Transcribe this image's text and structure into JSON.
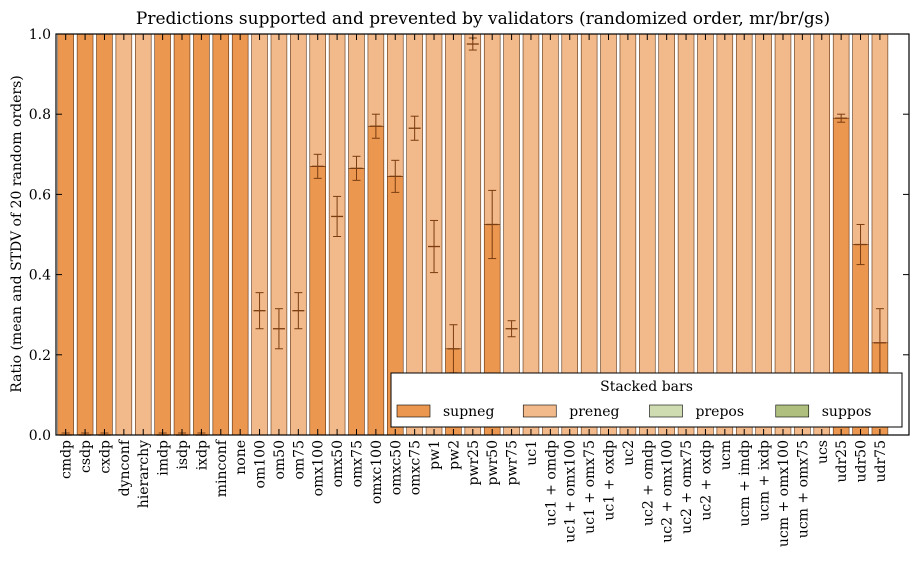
{
  "chart_data": {
    "type": "bar",
    "stacked": true,
    "title": "Predictions supported and prevented by validators (randomized order, mr/br/gs)",
    "xlabel": "",
    "ylabel": "Ratio (mean and STDV of 20 random orders)",
    "ylim": [
      0,
      1.0
    ],
    "yticks": [
      "0.0",
      "0.2",
      "0.4",
      "0.6",
      "0.8",
      "1.0"
    ],
    "grid": false,
    "legend": {
      "title": "Stacked bars",
      "placement": "lower-right",
      "entries": [
        "supneg",
        "preneg",
        "prepos",
        "suppos"
      ]
    },
    "colors": {
      "supneg": "#eb974f",
      "preneg": "#f2b98a",
      "prepos": "#cfdcb2",
      "suppos": "#aebf7e",
      "edge": "#5a3215",
      "errorbar": "#7a3c10"
    },
    "categories": [
      "cmdp",
      "csdp",
      "cxdp",
      "dynconf",
      "hierarchy",
      "imdp",
      "isdp",
      "ixdp",
      "minconf",
      "none",
      "om100",
      "om50",
      "om75",
      "omx100",
      "omx50",
      "omx75",
      "omxc100",
      "omxc50",
      "omxc75",
      "pw1",
      "pw2",
      "pwr25",
      "pwr50",
      "pwr75",
      "uc1",
      "uc1 + omdp",
      "uc1 + omx100",
      "uc1 + omx75",
      "uc1 + oxdp",
      "uc2",
      "uc2 + omdp",
      "uc2 + omx100",
      "uc2 + omx75",
      "uc2 + oxdp",
      "ucm",
      "ucm + imdp",
      "ucm + ixdp",
      "ucm + omx100",
      "ucm + omx75",
      "ucs",
      "udr25",
      "udr50",
      "udr75"
    ],
    "series": [
      {
        "name": "supneg",
        "values": [
          1.0,
          1.0,
          1.0,
          0,
          0,
          1.0,
          1.0,
          1.0,
          1.0,
          1.0,
          0,
          0,
          0,
          0.67,
          0,
          0.665,
          0.77,
          0.645,
          0,
          0,
          0.215,
          0,
          0.525,
          0,
          0,
          0,
          0,
          0,
          0,
          0,
          0,
          0,
          0,
          0,
          0,
          0,
          0,
          0,
          0,
          0,
          0.79,
          0.475,
          0.23
        ]
      },
      {
        "name": "preneg",
        "values": [
          0,
          0,
          0,
          1.0,
          1.0,
          0,
          0,
          0,
          0,
          0,
          1.0,
          1.0,
          1.0,
          0.33,
          1.0,
          0.335,
          0.23,
          0.355,
          1.0,
          1.0,
          0.785,
          1.0,
          0.475,
          1.0,
          1.0,
          1.0,
          1.0,
          1.0,
          1.0,
          1.0,
          1.0,
          1.0,
          1.0,
          1.0,
          1.0,
          1.0,
          1.0,
          1.0,
          1.0,
          1.0,
          0.21,
          0.525,
          0.77
        ]
      },
      {
        "name": "prepos",
        "values": [
          0,
          0,
          0,
          0,
          0,
          0,
          0,
          0,
          0,
          0,
          0,
          0,
          0,
          0,
          0,
          0,
          0,
          0,
          0,
          0,
          0,
          0,
          0,
          0,
          0,
          0,
          0,
          0,
          0,
          0,
          0,
          0,
          0,
          0,
          0,
          0,
          0,
          0,
          0,
          0,
          0,
          0,
          0
        ]
      },
      {
        "name": "suppos",
        "values": [
          0,
          0,
          0,
          0,
          0,
          0,
          0,
          0,
          0,
          0,
          0,
          0,
          0,
          0,
          0,
          0,
          0,
          0,
          0,
          0,
          0,
          0,
          0,
          0,
          0,
          0,
          0,
          0,
          0,
          0,
          0,
          0,
          0,
          0,
          0,
          0,
          0,
          0,
          0,
          0,
          0,
          0,
          0
        ]
      }
    ],
    "errorbars": {
      "mean": [
        0,
        0,
        0,
        null,
        null,
        0,
        0,
        0,
        null,
        null,
        0.31,
        0.265,
        0.31,
        0.67,
        0.545,
        0.665,
        0.77,
        0.645,
        0.765,
        0.47,
        0.215,
        0.975,
        0.525,
        0.265,
        null,
        null,
        null,
        null,
        null,
        null,
        null,
        null,
        null,
        null,
        null,
        null,
        null,
        null,
        null,
        null,
        0.79,
        0.475,
        0.23
      ],
      "stdv": [
        0.005,
        0.005,
        0.005,
        null,
        null,
        0.005,
        0.005,
        0.005,
        null,
        null,
        0.045,
        0.05,
        0.045,
        0.03,
        0.05,
        0.03,
        0.03,
        0.04,
        0.03,
        0.065,
        0.06,
        0.015,
        0.085,
        0.02,
        null,
        null,
        null,
        null,
        null,
        null,
        null,
        null,
        null,
        null,
        null,
        null,
        null,
        null,
        null,
        null,
        0.01,
        0.05,
        0.085
      ]
    }
  }
}
